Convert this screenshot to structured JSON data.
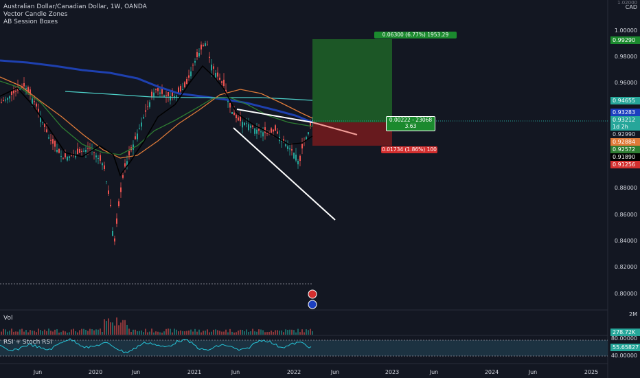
{
  "legend": {
    "symbol_title": "Australian Dollar/Canadian Dollar, 1W, OANDA",
    "indicator_1": "Vector Candle Zones",
    "indicator_2": "AB Session Boxes"
  },
  "axis": {
    "currency": "CAD",
    "top_cut": "1.02000",
    "price_ticks": [
      "1.00000",
      "0.98000",
      "0.96000",
      "0.88000",
      "0.86000",
      "0.84000",
      "0.82000",
      "0.80000"
    ],
    "time_labels": [
      "Jun",
      "2020",
      "Jun",
      "2021",
      "Jun",
      "2022",
      "Jun",
      "2023",
      "Jun",
      "2024",
      "Jun",
      "2025"
    ]
  },
  "price_tags": [
    {
      "text": "0.99290",
      "bg": "#1b8a2e",
      "fg": "#ffffff"
    },
    {
      "text": "0.94655",
      "bg": "#26a69a",
      "fg": "#ffffff"
    },
    {
      "text": "0.93283",
      "bg": "#1c3fbf",
      "fg": "#ffffff"
    },
    {
      "text": "0.93212",
      "bg": "#26a69a",
      "fg": "#ffffff"
    },
    {
      "text": "1d 2h",
      "bg": "#26a69a",
      "fg": "#ffffff"
    },
    {
      "text": "0.92990",
      "bg": "#131722",
      "fg": "#d1d4dc"
    },
    {
      "text": "0.92884",
      "bg": "#e07b39",
      "fg": "#ffffff"
    },
    {
      "text": "0.92572",
      "bg": "#2e7d32",
      "fg": "#ffffff"
    },
    {
      "text": "0.91890",
      "bg": "#000000",
      "fg": "#ffffff"
    },
    {
      "text": "0.91256",
      "bg": "#d32f2f",
      "fg": "#ffffff"
    }
  ],
  "position": {
    "target_text": "0.06300 (6.77%) 1953.29",
    "stop_text": "0.01734 (1.86%) 100",
    "center_line1": "0.00222 - 23068",
    "center_line2": "3.63"
  },
  "volume": {
    "label": "Vol",
    "max_tick": "2M",
    "current": "278.72K"
  },
  "rsi": {
    "label": "RSI + Stoch RSI",
    "upper": "80.00000",
    "value": "55.65827",
    "lower": "40.00000"
  },
  "colors": {
    "background": "#131722",
    "up": "#26a69a",
    "down": "#ef5350",
    "profit_zone": "#1e5e27",
    "loss_zone": "#6b1a1f",
    "ma_blue": "#1e40af",
    "ma_teal": "#4dd0c8",
    "ma_orange": "#e07b39",
    "ma_green": "#2e7d32",
    "ma_black": "#000000",
    "trendline": "#ffffff"
  }
}
